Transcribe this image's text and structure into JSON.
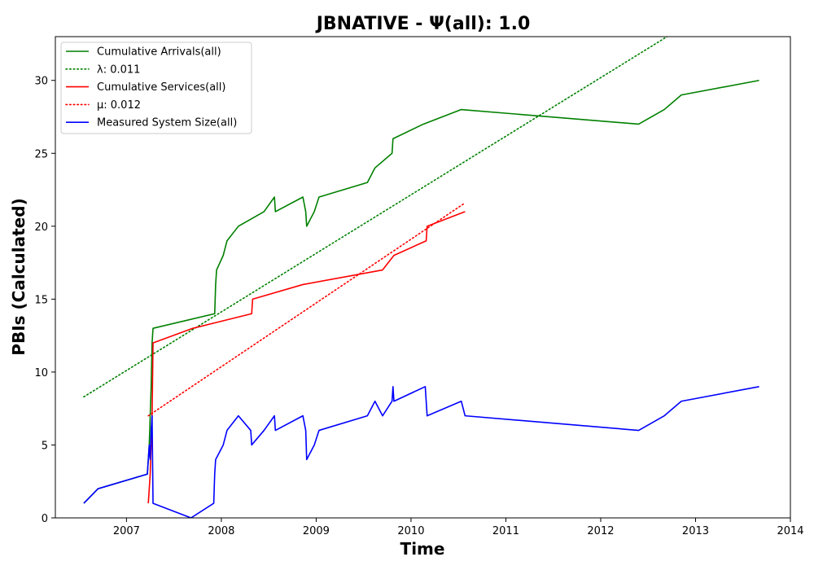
{
  "chart_data": {
    "type": "line",
    "title": "JBNATIVE -  Ψ(all): 1.0",
    "xlabel": "Time",
    "ylabel": "PBIs (Calculated)",
    "xlim": [
      2006.25,
      2014.0
    ],
    "ylim": [
      0,
      33
    ],
    "grid": false,
    "legend_position": "top-left",
    "x_ticks": [
      2007,
      2008,
      2009,
      2010,
      2011,
      2012,
      2013,
      2014
    ],
    "x_tick_labels": [
      "2007",
      "2008",
      "2009",
      "2010",
      "2011",
      "2012",
      "2013",
      "2014"
    ],
    "y_ticks": [
      0,
      5,
      10,
      15,
      20,
      25,
      30
    ],
    "y_tick_labels": [
      "0",
      "5",
      "10",
      "15",
      "20",
      "25",
      "30"
    ],
    "series": [
      {
        "name": "Cumulative Arrivals(all)",
        "color": "#008000",
        "style": "solid",
        "points": [
          [
            2006.55,
            1
          ],
          [
            2006.7,
            2
          ],
          [
            2007.22,
            3
          ],
          [
            2007.23,
            4
          ],
          [
            2007.24,
            5
          ],
          [
            2007.25,
            7
          ],
          [
            2007.26,
            9
          ],
          [
            2007.27,
            12
          ],
          [
            2007.28,
            13
          ],
          [
            2007.93,
            14
          ],
          [
            2007.94,
            16
          ],
          [
            2007.95,
            17
          ],
          [
            2008.02,
            18
          ],
          [
            2008.06,
            19
          ],
          [
            2008.18,
            20
          ],
          [
            2008.45,
            21
          ],
          [
            2008.56,
            22
          ],
          [
            2008.57,
            21
          ],
          [
            2008.86,
            22
          ],
          [
            2008.89,
            21
          ],
          [
            2008.9,
            20
          ],
          [
            2008.98,
            21
          ],
          [
            2009.03,
            22
          ],
          [
            2009.54,
            23
          ],
          [
            2009.62,
            24
          ],
          [
            2009.8,
            25
          ],
          [
            2009.81,
            26
          ],
          [
            2010.13,
            27
          ],
          [
            2010.53,
            28
          ],
          [
            2012.4,
            27
          ],
          [
            2012.67,
            28
          ],
          [
            2012.85,
            29
          ],
          [
            2013.67,
            30
          ]
        ]
      },
      {
        "name": "λ: 0.011",
        "color": "#008000",
        "style": "dotted",
        "points": [
          [
            2006.55,
            8.3
          ],
          [
            2012.7,
            33.0
          ]
        ]
      },
      {
        "name": "Cumulative Services(all)",
        "color": "#ff0000",
        "style": "solid",
        "points": [
          [
            2007.23,
            1
          ],
          [
            2007.25,
            3
          ],
          [
            2007.27,
            7
          ],
          [
            2007.28,
            12
          ],
          [
            2007.7,
            13
          ],
          [
            2008.32,
            14
          ],
          [
            2008.33,
            15
          ],
          [
            2008.86,
            16
          ],
          [
            2009.7,
            17
          ],
          [
            2009.82,
            18
          ],
          [
            2010.16,
            19
          ],
          [
            2010.17,
            20
          ],
          [
            2010.57,
            21
          ]
        ]
      },
      {
        "name": "μ: 0.012",
        "color": "#ff0000",
        "style": "dotted",
        "points": [
          [
            2007.23,
            7.0
          ],
          [
            2010.57,
            21.6
          ]
        ]
      },
      {
        "name": "Measured System Size(all)",
        "color": "#0000ff",
        "style": "solid",
        "points": [
          [
            2006.55,
            1
          ],
          [
            2006.7,
            2
          ],
          [
            2007.22,
            3
          ],
          [
            2007.23,
            4
          ],
          [
            2007.24,
            5
          ],
          [
            2007.25,
            4
          ],
          [
            2007.26,
            6
          ],
          [
            2007.27,
            7
          ],
          [
            2007.28,
            1
          ],
          [
            2007.68,
            0
          ],
          [
            2007.92,
            1
          ],
          [
            2007.93,
            3
          ],
          [
            2007.94,
            4
          ],
          [
            2008.02,
            5
          ],
          [
            2008.06,
            6
          ],
          [
            2008.18,
            7
          ],
          [
            2008.31,
            6
          ],
          [
            2008.32,
            5
          ],
          [
            2008.45,
            6
          ],
          [
            2008.56,
            7
          ],
          [
            2008.57,
            6
          ],
          [
            2008.86,
            7
          ],
          [
            2008.89,
            6
          ],
          [
            2008.9,
            4
          ],
          [
            2008.98,
            5
          ],
          [
            2009.03,
            6
          ],
          [
            2009.54,
            7
          ],
          [
            2009.62,
            8
          ],
          [
            2009.7,
            7
          ],
          [
            2009.8,
            8
          ],
          [
            2009.81,
            9
          ],
          [
            2009.82,
            8
          ],
          [
            2010.15,
            9
          ],
          [
            2010.17,
            7
          ],
          [
            2010.53,
            8
          ],
          [
            2010.57,
            7
          ],
          [
            2012.4,
            6
          ],
          [
            2012.67,
            7
          ],
          [
            2012.85,
            8
          ],
          [
            2013.67,
            9
          ]
        ]
      }
    ]
  }
}
